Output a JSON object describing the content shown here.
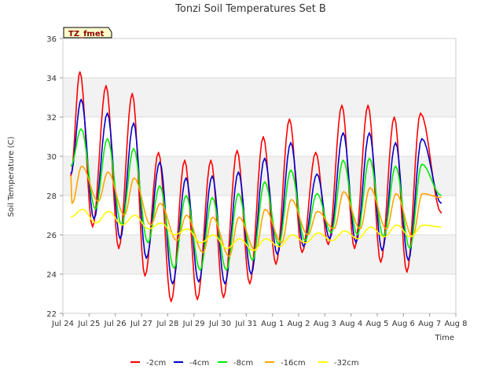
{
  "chart_data": {
    "type": "line",
    "title": "Tonzi Soil Temperatures Set B",
    "badge": "TZ_fmet",
    "xlabel": "Time",
    "ylabel": "Soil Temperature (C)",
    "ylim": [
      22,
      36
    ],
    "y_ticks": [
      22,
      24,
      26,
      28,
      30,
      32,
      34,
      36
    ],
    "x_ticks": [
      "Jul 24",
      "Jul 25",
      "Jul 26",
      "Jul 27",
      "Jul 28",
      "Jul 29",
      "Jul 30",
      "Jul 31",
      "Aug 1",
      "Aug 2",
      "Aug 3",
      "Aug 4",
      "Aug 5",
      "Aug 6",
      "Aug 7",
      "Aug 8"
    ],
    "x_range_days": [
      0,
      15
    ],
    "x_data_range_days": [
      0.3,
      14.45
    ],
    "grid": true,
    "shaded_bands": [
      [
        24,
        26
      ],
      [
        28,
        30
      ],
      [
        32,
        34
      ]
    ],
    "legend_position": "bottom",
    "series": [
      {
        "name": "-2cm",
        "color": "#ff0000",
        "phase_days": 0.65,
        "start": 29.0,
        "min_time_frac": 0.1,
        "max_time_frac": 0.65,
        "min": [
          27.6,
          26.4,
          25.3,
          23.9,
          22.6,
          22.7,
          22.8,
          23.5,
          24.5,
          25.1,
          25.5,
          25.3,
          24.6,
          24.1
        ],
        "max": [
          34.3,
          33.6,
          33.2,
          30.2,
          29.8,
          29.8,
          30.3,
          31.0,
          31.9,
          30.2,
          32.6,
          32.6,
          32.0,
          32.2
        ],
        "end": 27.1
      },
      {
        "name": "-4cm",
        "color": "#0000cc",
        "phase_days": 0.71,
        "start": 29.1,
        "min_time_frac": 0.15,
        "max_time_frac": 0.7,
        "min": [
          27.3,
          26.8,
          25.8,
          24.8,
          23.5,
          23.6,
          23.5,
          24.0,
          25.0,
          25.4,
          25.8,
          25.6,
          25.2,
          24.7
        ],
        "max": [
          32.9,
          32.2,
          31.7,
          29.7,
          28.9,
          29.0,
          29.2,
          29.9,
          30.7,
          29.1,
          31.2,
          31.2,
          30.7,
          30.9
        ],
        "end": 27.6
      },
      {
        "name": "-8cm",
        "color": "#00ee00",
        "phase_days": 0.83,
        "start": 29.5,
        "min_time_frac": 0.2,
        "max_time_frac": 0.7,
        "min": [
          27.6,
          27.3,
          26.5,
          25.6,
          24.3,
          24.2,
          24.2,
          24.7,
          25.5,
          25.7,
          26.1,
          26.0,
          25.9,
          25.3
        ],
        "max": [
          31.4,
          30.9,
          30.4,
          28.5,
          28.0,
          27.9,
          28.1,
          28.7,
          29.3,
          28.1,
          29.8,
          29.9,
          29.5,
          29.6
        ],
        "end": 28.0
      },
      {
        "name": "-16cm",
        "color": "#ffa500",
        "phase_days": 1.0,
        "start": 29.0,
        "min_time_frac": 0.3,
        "max_time_frac": 0.72,
        "min": [
          27.6,
          27.7,
          27.0,
          26.5,
          25.7,
          25.1,
          24.9,
          25.2,
          25.6,
          26.0,
          26.3,
          26.3,
          26.3,
          25.9
        ],
        "max": [
          29.5,
          29.2,
          28.9,
          27.6,
          27.0,
          26.9,
          26.9,
          27.3,
          27.8,
          27.2,
          28.2,
          28.4,
          28.1,
          28.1
        ],
        "end": 27.9
      },
      {
        "name": "-32cm",
        "color": "#ffff00",
        "phase_days": 0.25,
        "start": 26.9,
        "min_time_frac": 0.25,
        "max_time_frac": 0.75,
        "min": [
          26.5,
          26.6,
          26.5,
          26.3,
          26.0,
          25.6,
          25.3,
          25.2,
          25.4,
          25.6,
          25.7,
          25.8,
          25.9,
          25.9
        ],
        "max": [
          27.3,
          27.2,
          27.0,
          26.6,
          26.3,
          26.0,
          25.8,
          25.8,
          26.0,
          26.1,
          26.2,
          26.4,
          26.5,
          26.5
        ],
        "end": 26.4
      }
    ]
  }
}
